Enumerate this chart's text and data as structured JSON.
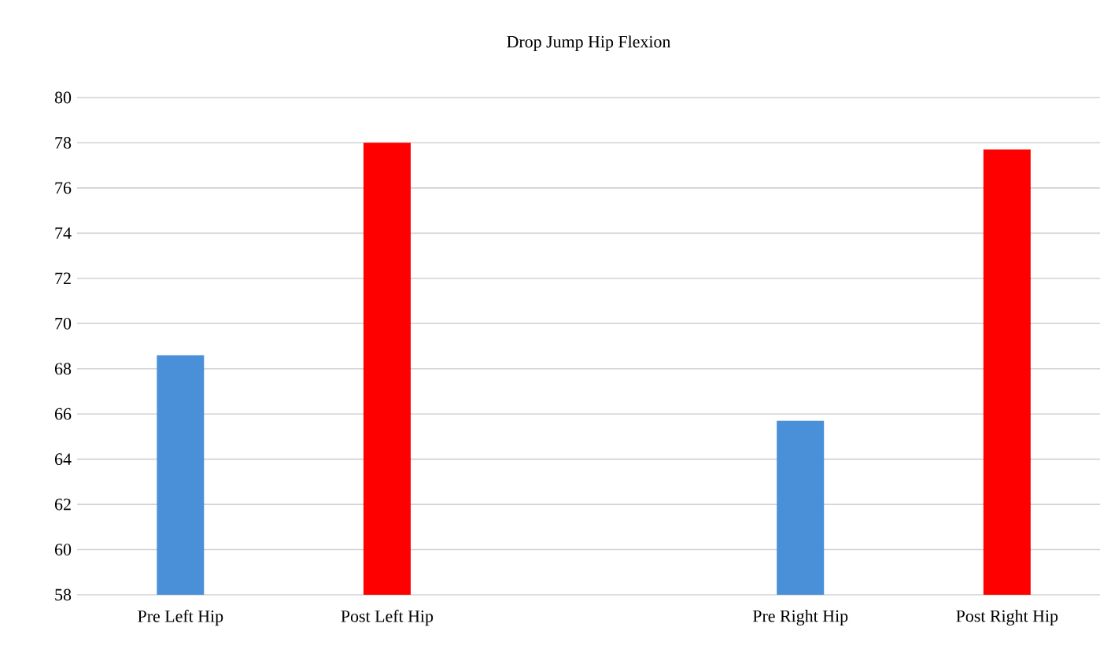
{
  "chart_data": {
    "type": "bar",
    "title": "Drop Jump Hip Flexion",
    "categories": [
      "Pre Left Hip",
      "Post Left Hip",
      null,
      "Pre Right Hip",
      "Post Right Hip"
    ],
    "values": [
      68.6,
      78.0,
      null,
      65.7,
      77.7
    ],
    "colors": [
      "#4a90d9",
      "#ff0000",
      null,
      "#4a90d9",
      "#ff0000"
    ],
    "ylim": [
      58,
      80
    ],
    "yticks": [
      58,
      60,
      62,
      64,
      66,
      68,
      70,
      72,
      74,
      76,
      78,
      80
    ],
    "grid": "y"
  }
}
